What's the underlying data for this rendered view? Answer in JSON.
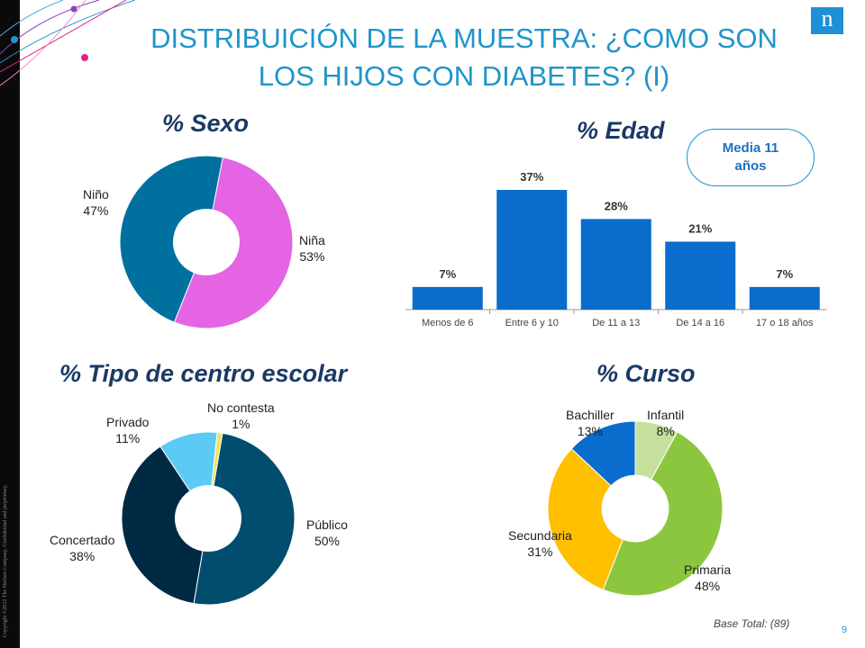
{
  "title_line1": "DISTRIBUICIÓN DE LA MUESTRA: ¿COMO SON",
  "title_line2": "LOS HIJOS CON DIABETES? (I)",
  "logo_letter": "n",
  "copyright": "Copyright ©2012 The Nielsen Company. Confidential and proprietary.",
  "page_number": "9",
  "base_note": "Base Total: (89)",
  "mean_badge": "Media 11 años",
  "colors": {
    "title": "#1e95c9",
    "section_title": "#1a3a66",
    "bars": "#0a6ccc"
  },
  "chart_data": [
    {
      "type": "pie",
      "title": "% Sexo",
      "categories": [
        "Niña",
        "Niño"
      ],
      "values": [
        53,
        47
      ],
      "labels": [
        "53%",
        "47%"
      ],
      "colors": [
        "#e464e4",
        "#00709e"
      ]
    },
    {
      "type": "bar",
      "title": "% Edad",
      "categories": [
        "Menos de 6",
        "Entre 6 y 10",
        "De 11 a 13",
        "De 14 a 16",
        "17 o 18 años"
      ],
      "values": [
        7,
        37,
        28,
        21,
        7
      ],
      "labels": [
        "7%",
        "37%",
        "28%",
        "21%",
        "7%"
      ],
      "color": "#0a6ccc",
      "xlabel": "",
      "ylabel": ""
    },
    {
      "type": "pie",
      "title": "% Tipo de centro escolar",
      "categories": [
        "No contesta",
        "Público",
        "Concertado",
        "Privado"
      ],
      "values": [
        1,
        50,
        38,
        11
      ],
      "labels": [
        "1%",
        "50%",
        "38%",
        "11%"
      ],
      "colors": [
        "#f2e25a",
        "#004d6e",
        "#002a44",
        "#5bcaf5"
      ]
    },
    {
      "type": "pie",
      "title": "% Curso",
      "categories": [
        "Infantil",
        "Primaria",
        "Secundaria",
        "Bachiller"
      ],
      "values": [
        8,
        48,
        31,
        13
      ],
      "labels": [
        "8%",
        "48%",
        "31%",
        "13%"
      ],
      "colors": [
        "#c5e09e",
        "#8cc63f",
        "#ffc000",
        "#0a6ccc"
      ]
    }
  ]
}
